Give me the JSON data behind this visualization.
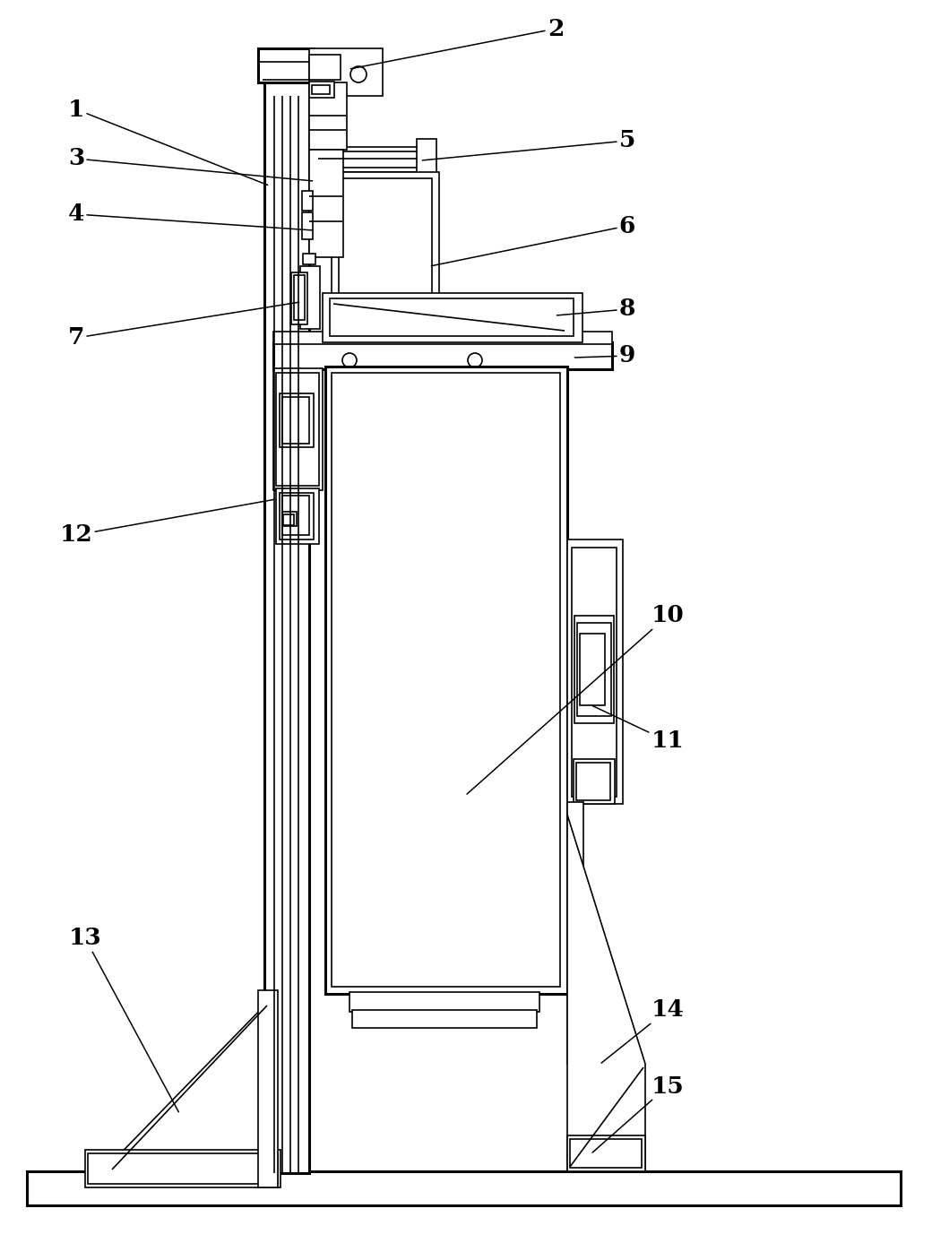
{
  "bg_color": "#ffffff",
  "lc": "#000000",
  "lw": 1.2,
  "tlw": 2.2,
  "fw": 10.4,
  "fh": 13.87,
  "dpi": 100
}
